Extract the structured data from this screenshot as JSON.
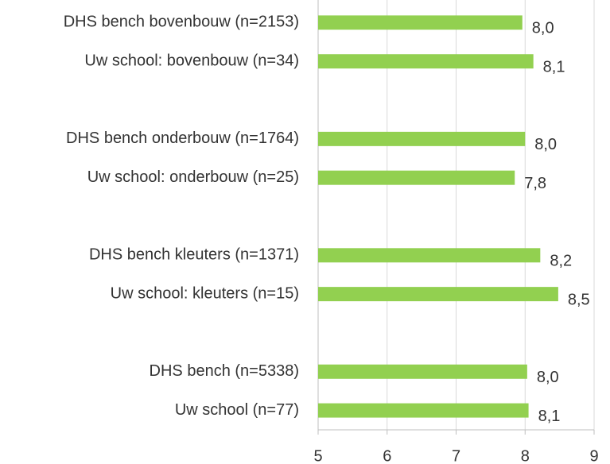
{
  "chart_data": {
    "type": "barh",
    "categories": [
      "DHS bench bovenbouw (n=2153)",
      "Uw school: bovenbouw (n=34)",
      null,
      "DHS bench onderbouw (n=1764)",
      "Uw school: onderbouw (n=25)",
      null,
      "DHS bench kleuters (n=1371)",
      "Uw school: kleuters (n=15)",
      null,
      "DHS bench (n=5338)",
      "Uw school (n=77)"
    ],
    "values": [
      7.96,
      8.12,
      null,
      8.0,
      7.85,
      null,
      8.22,
      8.48,
      null,
      8.03,
      8.05
    ],
    "value_labels": [
      "8,0",
      "8,1",
      null,
      "8,0",
      "7,8",
      null,
      "8,2",
      "8,5",
      null,
      "8,0",
      "8,1"
    ],
    "color": "#92d050",
    "xlim": [
      5,
      9
    ],
    "xticks": [
      5,
      6,
      7,
      8,
      9
    ],
    "grid": true
  }
}
